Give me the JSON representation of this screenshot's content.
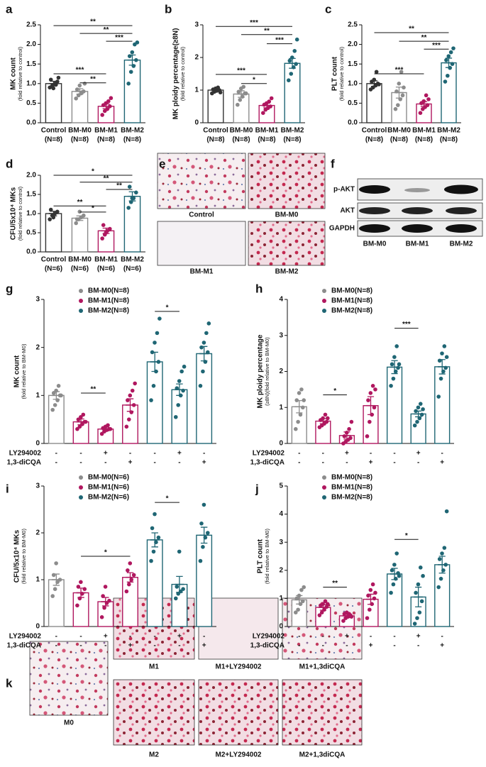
{
  "chart_data": [
    {
      "type": "bar",
      "panel": "a",
      "ylabel": "MK  count",
      "ylabel_sub": "(fold relative to control)",
      "categories": [
        "Control",
        "BM-M0",
        "BM-M1",
        "BM-M2"
      ],
      "group_sizes": [
        "(N=8)",
        "(N=8)",
        "(N=8)",
        "(N=8)"
      ],
      "colors": [
        "#333333",
        "#8c8c8c",
        "#b0175f",
        "#1f6674"
      ],
      "values": [
        1.0,
        0.8,
        0.42,
        1.6
      ],
      "errors": [
        0.06,
        0.07,
        0.06,
        0.13
      ],
      "points": [
        [
          0.9,
          0.95,
          1.0,
          1.05,
          1.1,
          0.88,
          0.97,
          1.15
        ],
        [
          0.62,
          0.7,
          0.75,
          0.8,
          0.85,
          0.95,
          0.78,
          1.0
        ],
        [
          0.2,
          0.3,
          0.35,
          0.42,
          0.45,
          0.5,
          0.55,
          0.63
        ],
        [
          1.0,
          1.3,
          1.45,
          1.6,
          1.7,
          1.8,
          2.0,
          2.05
        ]
      ],
      "brackets": [
        {
          "pair": [
            0,
            3
          ],
          "y": 2.48,
          "label": "**"
        },
        {
          "pair": [
            1,
            3
          ],
          "y": 2.28,
          "label": "**"
        },
        {
          "pair": [
            2,
            3
          ],
          "y": 2.08,
          "label": "***"
        },
        {
          "pair": [
            0,
            2
          ],
          "y": 1.25,
          "label": "***"
        },
        {
          "pair": [
            1,
            2
          ],
          "y": 1.02,
          "label": "**"
        }
      ],
      "ylim": [
        0,
        2.5
      ],
      "yticks": [
        {
          "value": 0,
          "label": "0.0"
        },
        0.5,
        {
          "value": 1,
          "label": "1.0"
        },
        1.5,
        {
          "value": 2,
          "label": "2.0"
        },
        2.5
      ]
    },
    {
      "type": "bar",
      "panel": "b",
      "ylabel": "MK ploidy percentage(≥8N)",
      "ylabel_sub": "(fold relative to control)",
      "categories": [
        "Control",
        "BM-M0",
        "BM-M1",
        "BM-M2"
      ],
      "group_sizes": [
        "(N=8)",
        "(N=8)",
        "(N=8)",
        "(N=8)"
      ],
      "colors": [
        "#333333",
        "#8c8c8c",
        "#b0175f",
        "#1f6674"
      ],
      "values": [
        1.0,
        0.88,
        0.53,
        1.82
      ],
      "errors": [
        0.04,
        0.1,
        0.07,
        0.15
      ],
      "points": [
        [
          0.9,
          0.95,
          0.98,
          1.0,
          1.02,
          1.05,
          1.08,
          0.93
        ],
        [
          0.55,
          0.7,
          0.8,
          0.9,
          0.95,
          1.05,
          1.1,
          0.9
        ],
        [
          0.3,
          0.4,
          0.45,
          0.5,
          0.55,
          0.6,
          0.65,
          0.75
        ],
        [
          1.3,
          1.5,
          1.7,
          1.8,
          1.9,
          2.0,
          2.2,
          2.55
        ]
      ],
      "brackets": [
        {
          "pair": [
            0,
            3
          ],
          "y": 2.95,
          "label": "***"
        },
        {
          "pair": [
            1,
            3
          ],
          "y": 2.7,
          "label": "**"
        },
        {
          "pair": [
            2,
            3
          ],
          "y": 2.42,
          "label": "***"
        },
        {
          "pair": [
            0,
            2
          ],
          "y": 1.48,
          "label": "***"
        },
        {
          "pair": [
            1,
            2
          ],
          "y": 1.2,
          "label": "*"
        }
      ],
      "ylim": [
        0,
        3
      ],
      "yticks": [
        0,
        1,
        2,
        3
      ]
    },
    {
      "type": "bar",
      "panel": "c",
      "ylabel": "PLT count",
      "ylabel_sub": "(fold relative to control)",
      "categories": [
        "Control",
        "BM-M0",
        "BM-M1",
        "BM-M2"
      ],
      "group_sizes": [
        "(N=8)",
        "(N=8)",
        "(N=8)",
        "(N=8)"
      ],
      "colors": [
        "#333333",
        "#8c8c8c",
        "#b0175f",
        "#1f6674"
      ],
      "values": [
        1.0,
        0.77,
        0.48,
        1.53
      ],
      "errors": [
        0.07,
        0.14,
        0.06,
        0.12
      ],
      "points": [
        [
          0.85,
          0.9,
          0.95,
          1.0,
          1.05,
          1.1,
          1.3,
          0.98
        ],
        [
          0.35,
          0.45,
          0.6,
          0.7,
          0.8,
          1.0,
          1.3,
          0.9
        ],
        [
          0.25,
          0.35,
          0.4,
          0.45,
          0.5,
          0.55,
          0.7,
          0.6
        ],
        [
          1.05,
          1.2,
          1.4,
          1.5,
          1.6,
          1.7,
          1.8,
          1.9
        ]
      ],
      "brackets": [
        {
          "pair": [
            0,
            3
          ],
          "y": 2.3,
          "label": "**"
        },
        {
          "pair": [
            1,
            3
          ],
          "y": 2.08,
          "label": "**"
        },
        {
          "pair": [
            2,
            3
          ],
          "y": 1.88,
          "label": "***"
        },
        {
          "pair": [
            0,
            2
          ],
          "y": 1.25,
          "label": "***"
        }
      ],
      "ylim": [
        0,
        2.5
      ],
      "yticks": [
        {
          "value": 0,
          "label": "0.0"
        },
        0.5,
        {
          "value": 1,
          "label": "1.0"
        },
        1.5,
        {
          "value": 2,
          "label": "2.0"
        },
        2.5
      ]
    },
    {
      "type": "bar",
      "panel": "d",
      "ylabel": "CFU/5x10⁴ MKs",
      "ylabel_sub": "(fold relative to control)",
      "categories": [
        "Control",
        "BM-M0",
        "BM-M1",
        "BM-M2"
      ],
      "group_sizes": [
        "(N=6)",
        "(N=6)",
        "(N=6)",
        "(N=6)"
      ],
      "colors": [
        "#333333",
        "#8c8c8c",
        "#b0175f",
        "#1f6674"
      ],
      "values": [
        1.0,
        0.88,
        0.55,
        1.45
      ],
      "errors": [
        0.06,
        0.06,
        0.07,
        0.12
      ],
      "points": [
        [
          0.85,
          0.95,
          1.0,
          1.05,
          1.1,
          0.9
        ],
        [
          0.75,
          0.85,
          0.9,
          0.95,
          0.85,
          1.05
        ],
        [
          0.35,
          0.45,
          0.55,
          0.6,
          0.7,
          0.5
        ],
        [
          1.15,
          1.3,
          1.4,
          1.55,
          1.7,
          1.4
        ]
      ],
      "brackets": [
        {
          "pair": [
            0,
            3
          ],
          "y": 2.0,
          "label": "*"
        },
        {
          "pair": [
            1,
            3
          ],
          "y": 1.82,
          "label": "**"
        },
        {
          "pair": [
            2,
            3
          ],
          "y": 1.63,
          "label": "**"
        },
        {
          "pair": [
            0,
            2
          ],
          "y": 1.2,
          "label": "**"
        },
        {
          "pair": [
            1,
            2
          ],
          "y": 1.04,
          "label": "*"
        }
      ],
      "ylim": [
        0,
        2
      ],
      "yticks": [
        {
          "value": 0,
          "label": "0.0"
        },
        0.5,
        {
          "value": 1,
          "label": "1.0"
        },
        1.5,
        {
          "value": 2,
          "label": "2.0"
        }
      ]
    },
    {
      "type": "bar",
      "panel": "g",
      "ylabel": "MK  count",
      "ylabel_sub": "(fold relative to BM-M0)",
      "legend": [
        {
          "name": "BM-M0(N=8)",
          "color": "#8c8c8c"
        },
        {
          "name": "BM-M1(N=8)",
          "color": "#b0175f"
        },
        {
          "name": "BM-M2(N=8)",
          "color": "#1f6674"
        }
      ],
      "colors": [
        "#8c8c8c",
        "#b0175f",
        "#b0175f",
        "#b0175f",
        "#1f6674",
        "#1f6674",
        "#1f6674"
      ],
      "values": [
        1.0,
        0.45,
        0.3,
        0.8,
        1.7,
        1.12,
        1.87
      ],
      "errors": [
        0.08,
        0.06,
        0.04,
        0.13,
        0.2,
        0.12,
        0.15
      ],
      "points": [
        [
          0.7,
          0.8,
          0.9,
          1.0,
          1.05,
          1.1,
          1.2,
          1.0
        ],
        [
          0.3,
          0.35,
          0.4,
          0.45,
          0.5,
          0.55,
          0.6,
          0.45
        ],
        [
          0.2,
          0.25,
          0.28,
          0.3,
          0.32,
          0.35,
          0.38,
          0.3
        ],
        [
          0.35,
          0.5,
          0.65,
          0.8,
          0.9,
          1.0,
          1.1,
          1.25
        ],
        [
          0.9,
          1.2,
          1.5,
          1.7,
          1.9,
          2.1,
          2.3,
          2.6
        ],
        [
          0.55,
          0.8,
          1.0,
          1.1,
          1.15,
          1.3,
          1.5,
          1.6
        ],
        [
          1.2,
          1.5,
          1.7,
          1.9,
          2.0,
          2.1,
          2.3,
          2.5
        ]
      ],
      "brackets": [
        {
          "pair": [
            1,
            2
          ],
          "y": 1.05,
          "label": "**"
        },
        {
          "pair": [
            4,
            5
          ],
          "y": 2.75,
          "label": "*"
        }
      ],
      "conditions": [
        {
          "name": "LY294002",
          "marks": [
            "-",
            "-",
            "+",
            "-",
            "-",
            "+",
            "-"
          ]
        },
        {
          "name": "1,3-diCQA",
          "marks": [
            "-",
            "-",
            "-",
            "+",
            "-",
            "-",
            "+"
          ]
        }
      ],
      "ylim": [
        0,
        3
      ],
      "yticks": [
        0,
        1,
        2,
        3
      ]
    },
    {
      "type": "bar",
      "panel": "h",
      "ylabel": "MK ploidy percentage",
      "ylabel_sub": "(≥8N)(fold relative to BM-M0)",
      "legend": [
        {
          "name": "BM-M0(N=8)",
          "color": "#8c8c8c"
        },
        {
          "name": "BM-M1(N=8)",
          "color": "#b0175f"
        },
        {
          "name": "BM-M2(N=8)",
          "color": "#1f6674"
        }
      ],
      "colors": [
        "#8c8c8c",
        "#b0175f",
        "#b0175f",
        "#b0175f",
        "#1f6674",
        "#1f6674",
        "#1f6674"
      ],
      "values": [
        1.02,
        0.62,
        0.22,
        1.05,
        2.12,
        0.82,
        2.13
      ],
      "errors": [
        0.17,
        0.07,
        0.1,
        0.25,
        0.18,
        0.08,
        0.2
      ],
      "points": [
        [
          0.4,
          0.6,
          0.8,
          1.0,
          1.2,
          1.4,
          1.5,
          1.2
        ],
        [
          0.45,
          0.5,
          0.55,
          0.6,
          0.65,
          0.7,
          0.8,
          0.7
        ],
        [
          0.0,
          0.05,
          0.1,
          0.15,
          0.2,
          0.3,
          0.4,
          0.6
        ],
        [
          0.2,
          0.6,
          0.8,
          1.0,
          1.2,
          1.4,
          1.6,
          1.5
        ],
        [
          1.6,
          1.8,
          2.0,
          2.1,
          2.2,
          2.4,
          2.7,
          2.2
        ],
        [
          0.5,
          0.6,
          0.7,
          0.8,
          0.9,
          1.0,
          1.1,
          0.95
        ],
        [
          1.3,
          1.8,
          2.0,
          2.1,
          2.3,
          2.5,
          2.7,
          2.4
        ]
      ],
      "brackets": [
        {
          "pair": [
            1,
            2
          ],
          "y": 1.35,
          "label": "*"
        },
        {
          "pair": [
            4,
            5
          ],
          "y": 3.2,
          "label": "***"
        }
      ],
      "conditions": [
        {
          "name": "LY294002",
          "marks": [
            "-",
            "-",
            "+",
            "-",
            "-",
            "+",
            "-"
          ]
        },
        {
          "name": "1,3-diCQA",
          "marks": [
            "-",
            "-",
            "-",
            "+",
            "-",
            "-",
            "+"
          ]
        }
      ],
      "ylim": [
        0,
        4
      ],
      "yticks": [
        0,
        1,
        2,
        3,
        4
      ]
    },
    {
      "type": "bar",
      "panel": "i",
      "ylabel": "CFU/5x10⁴ MKs",
      "ylabel_sub": "(fold relative to BM-M0)",
      "legend": [
        {
          "name": "BM-M0(N=6)",
          "color": "#8c8c8c"
        },
        {
          "name": "BM-M1(N=6)",
          "color": "#b0175f"
        },
        {
          "name": "BM-M2(N=6)",
          "color": "#1f6674"
        }
      ],
      "colors": [
        "#8c8c8c",
        "#b0175f",
        "#b0175f",
        "#b0175f",
        "#1f6674",
        "#1f6674",
        "#1f6674"
      ],
      "values": [
        1.0,
        0.72,
        0.53,
        1.05,
        1.85,
        0.9,
        1.95
      ],
      "errors": [
        0.12,
        0.1,
        0.09,
        0.1,
        0.15,
        0.17,
        0.17
      ],
      "points": [
        [
          0.65,
          0.8,
          0.95,
          1.0,
          1.1,
          1.35
        ],
        [
          0.45,
          0.6,
          0.7,
          0.8,
          0.85,
          0.95
        ],
        [
          0.2,
          0.4,
          0.5,
          0.55,
          0.65,
          0.85
        ],
        [
          0.75,
          0.9,
          1.0,
          1.1,
          1.2,
          1.35
        ],
        [
          1.4,
          1.6,
          1.8,
          1.9,
          2.1,
          2.4
        ],
        [
          0.6,
          0.7,
          0.75,
          0.8,
          0.85,
          1.6
        ],
        [
          1.4,
          1.7,
          1.9,
          2.0,
          2.2,
          2.6
        ]
      ],
      "brackets": [
        {
          "pair": [
            1,
            3
          ],
          "y": 1.5,
          "label": "*"
        },
        {
          "pair": [
            4,
            5
          ],
          "y": 2.65,
          "label": "*"
        }
      ],
      "conditions": [
        {
          "name": "LY294002",
          "marks": [
            "-",
            "-",
            "+",
            "-",
            "-",
            "+",
            "-"
          ]
        },
        {
          "name": "1,3-diCQA",
          "marks": [
            "-",
            "-",
            "-",
            "+",
            "-",
            "-",
            "+"
          ]
        }
      ],
      "ylim": [
        0,
        3
      ],
      "yticks": [
        0,
        1,
        2,
        3
      ]
    },
    {
      "type": "bar",
      "panel": "j",
      "ylabel": "PLT count",
      "ylabel_sub": "(fold relative to BM-M0)",
      "legend": [
        {
          "name": "BM-M0(N=8)",
          "color": "#8c8c8c"
        },
        {
          "name": "BM-M1(N=8)",
          "color": "#b0175f"
        },
        {
          "name": "BM-M2(N=8)",
          "color": "#1f6674"
        }
      ],
      "colors": [
        "#8c8c8c",
        "#b0175f",
        "#b0175f",
        "#b0175f",
        "#1f6674",
        "#1f6674",
        "#1f6674"
      ],
      "values": [
        0.95,
        0.68,
        0.38,
        0.97,
        1.87,
        1.05,
        2.2
      ],
      "errors": [
        0.15,
        0.1,
        0.06,
        0.18,
        0.2,
        0.35,
        0.3
      ],
      "points": [
        [
          0.5,
          0.6,
          0.8,
          0.9,
          1.0,
          1.1,
          1.3,
          1.4
        ],
        [
          0.4,
          0.5,
          0.6,
          0.7,
          0.75,
          0.8,
          0.9,
          0.8
        ],
        [
          0.2,
          0.3,
          0.35,
          0.4,
          0.45,
          0.5,
          0.45,
          0.35
        ],
        [
          0.3,
          0.6,
          0.8,
          1.0,
          1.1,
          1.3,
          1.5,
          1.2
        ],
        [
          1.2,
          1.5,
          1.7,
          1.9,
          2.0,
          2.2,
          2.6,
          1.8
        ],
        [
          0.1,
          0.3,
          0.5,
          0.9,
          1.2,
          1.5,
          2.1,
          1.8
        ],
        [
          1.4,
          1.7,
          2.0,
          2.2,
          2.4,
          2.6,
          2.8,
          4.1
        ]
      ],
      "brackets": [
        {
          "pair": [
            1,
            2
          ],
          "y": 1.4,
          "label": "**"
        },
        {
          "pair": [
            4,
            5
          ],
          "y": 3.1,
          "label": "*"
        }
      ],
      "conditions": [
        {
          "name": "LY294002",
          "marks": [
            "-",
            "-",
            "+",
            "-",
            "-",
            "+",
            "-"
          ]
        },
        {
          "name": "1,3-diCQA",
          "marks": [
            "-",
            "-",
            "-",
            "+",
            "-",
            "-",
            "+"
          ]
        }
      ],
      "ylim": [
        0,
        5
      ],
      "yticks": [
        0,
        1,
        2,
        3,
        4,
        5
      ]
    }
  ],
  "image_panels": {
    "e": {
      "letter": "e",
      "labels": [
        "Control",
        "BM-M0",
        "BM-M1",
        "BM-M2"
      ]
    },
    "f": {
      "letter": "f",
      "rows": [
        "p-AKT",
        "AKT",
        "GAPDH"
      ],
      "columns": [
        "BM-M0",
        "BM-M1",
        "BM-M2"
      ]
    },
    "k": {
      "letter": "k",
      "labels": [
        "M0",
        "M1",
        "M1+LY294002",
        "M1+1,3diCQA",
        "M2",
        "M2+LY294002",
        "M2+1,3diCQA"
      ]
    }
  }
}
